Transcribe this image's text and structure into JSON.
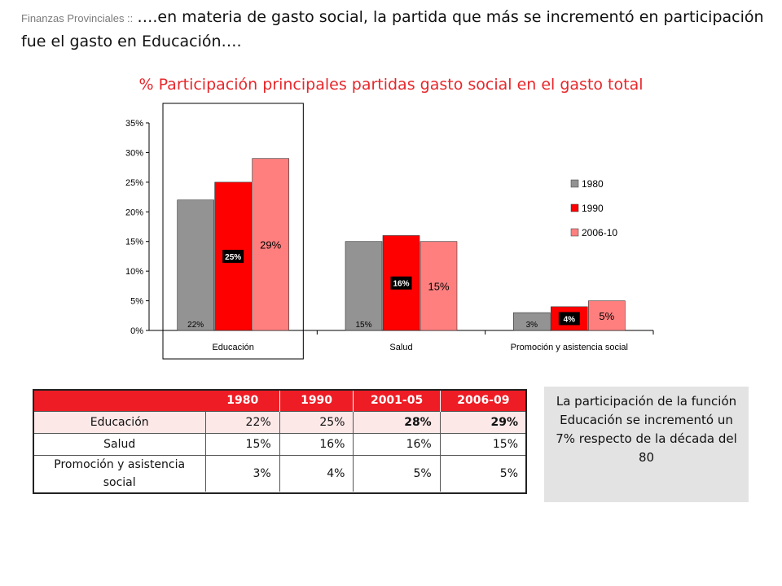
{
  "header": {
    "section": "Finanzas Provinciales ::",
    "lead": "….en materia de gasto social, la partida que más se incrementó en participación fue el gasto en Educación…."
  },
  "subtitle": "% Participación principales partidas gasto social en el gasto total",
  "chart_data": {
    "type": "bar",
    "categories": [
      "Educación",
      "Salud",
      "Promoción y asistencia social"
    ],
    "series": [
      {
        "name": "1980",
        "values": [
          22,
          15,
          3
        ],
        "labels": [
          "22%",
          "15%",
          "3%"
        ],
        "color": "#939393"
      },
      {
        "name": "1990",
        "values": [
          25,
          16,
          4
        ],
        "labels": [
          "25%",
          "16%",
          "4%"
        ],
        "color": "#ff0000"
      },
      {
        "name": "2006-10",
        "values": [
          29,
          15,
          5
        ],
        "labels": [
          "29%",
          "15%",
          "5%"
        ],
        "color": "#ff7f7f"
      }
    ],
    "yticks": [
      "0%",
      "5%",
      "10%",
      "15%",
      "20%",
      "25%",
      "30%",
      "35%"
    ],
    "ylim": [
      0,
      35
    ],
    "legend_position": "right",
    "highlight_category": "Educación",
    "grid": false
  },
  "table": {
    "headers": [
      "",
      "1980",
      "1990",
      "2001-05",
      "2006-09"
    ],
    "rows": [
      {
        "label": "Educación",
        "cells": [
          "22%",
          "25%",
          "28%",
          "29%"
        ]
      },
      {
        "label": "Salud",
        "cells": [
          "15%",
          "16%",
          "16%",
          "15%"
        ]
      },
      {
        "label": "Promoción y asistencia social",
        "cells": [
          "3%",
          "4%",
          "5%",
          "5%"
        ]
      }
    ]
  },
  "note": {
    "text": "La participación de la función Educación se incrementó un 7% respecto de la década del 80"
  }
}
